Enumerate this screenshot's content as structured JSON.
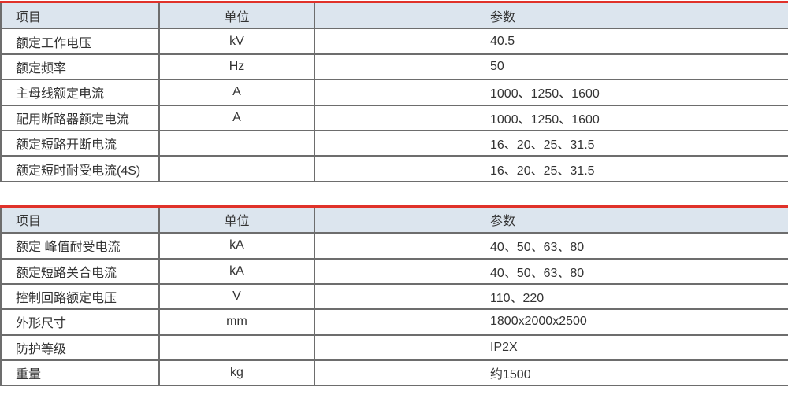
{
  "colors": {
    "accent_red": "#e0322a",
    "header_bg": "#dce5ee",
    "border_gray": "#6d6d6d",
    "text": "#333333"
  },
  "tables": [
    {
      "headers": {
        "item": "项目",
        "unit": "单位",
        "param": "参数"
      },
      "rows": [
        {
          "item": "额定工作电压",
          "unit": "kV",
          "param": "40.5"
        },
        {
          "item": "额定频率",
          "unit": "Hz",
          "param": "50"
        },
        {
          "item": "主母线额定电流",
          "unit": "A",
          "param": "1000、1250、1600"
        },
        {
          "item": "配用断路器额定电流",
          "unit": "A",
          "param": "1000、1250、1600"
        },
        {
          "item": "额定短路开断电流",
          "unit": "",
          "param": "16、20、25、31.5"
        },
        {
          "item": "额定短时耐受电流(4S)",
          "unit": "",
          "param": "16、20、25、31.5"
        }
      ]
    },
    {
      "headers": {
        "item": "项目",
        "unit": "单位",
        "param": "参数"
      },
      "rows": [
        {
          "item": "额定 峰值耐受电流",
          "unit": "kA",
          "param": "40、50、63、80"
        },
        {
          "item": "额定短路关合电流",
          "unit": "kA",
          "param": "40、50、63、80"
        },
        {
          "item": "控制回路额定电压",
          "unit": "V",
          "param": "110、220"
        },
        {
          "item": "外形尺寸",
          "unit": "mm",
          "param": "1800x2000x2500"
        },
        {
          "item": "防护等级",
          "unit": "",
          "param": "IP2X"
        },
        {
          "item": "重量",
          "unit": "kg",
          "param": "约1500"
        }
      ]
    }
  ]
}
